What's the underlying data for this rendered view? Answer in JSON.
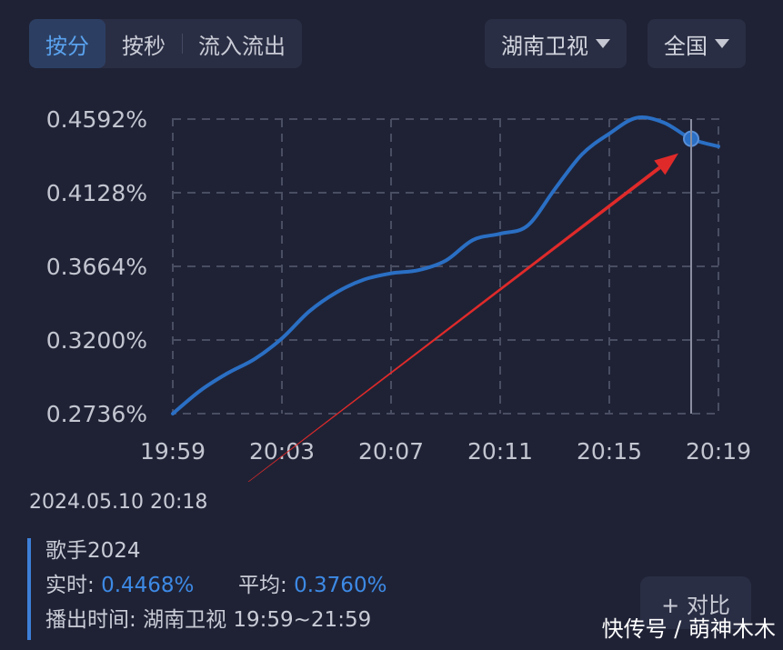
{
  "tabs": [
    {
      "label": "按分",
      "active": true
    },
    {
      "label": "按秒",
      "active": false
    },
    {
      "label": "流入流出",
      "active": false
    }
  ],
  "filters": {
    "channel": "湖南卫视",
    "region": "全国"
  },
  "info": {
    "datetime": "2024.05.10 20:18",
    "program": "歌手2024",
    "realtime_label": "实时:",
    "realtime_value": "0.4468%",
    "average_label": "平均:",
    "average_value": "0.3760%",
    "broadcast_label": "播出时间:",
    "broadcast_value": "湖南卫视 19:59~21:59"
  },
  "compare_label": "+ 对比",
  "watermark": "快传号 / 萌神木木",
  "colors": {
    "line": "#2a6fc4",
    "arrow": "#e02a2a",
    "accent": "#3d8ae6"
  },
  "chart_data": {
    "type": "line",
    "title": "",
    "xlabel": "",
    "ylabel": "",
    "x_ticks": [
      "19:59",
      "20:03",
      "20:07",
      "20:11",
      "20:15",
      "20:19"
    ],
    "y_ticks": [
      "0.2736%",
      "0.3200%",
      "0.3664%",
      "0.4128%",
      "0.4592%"
    ],
    "ylim": [
      0.2736,
      0.4592
    ],
    "xlim_minutes": [
      0,
      20
    ],
    "grid": true,
    "cursor_time": "20:18",
    "series": [
      {
        "x": [
          "19:59",
          "20:00",
          "20:01",
          "20:02",
          "20:03",
          "20:04",
          "20:05",
          "20:06",
          "20:07",
          "20:08",
          "20:09",
          "20:10",
          "20:11",
          "20:12",
          "20:13",
          "20:14",
          "20:15",
          "20:16",
          "20:17",
          "20:18",
          "20:19"
        ],
        "values": [
          0.2736,
          0.288,
          0.299,
          0.308,
          0.321,
          0.338,
          0.35,
          0.358,
          0.362,
          0.364,
          0.37,
          0.383,
          0.387,
          0.392,
          0.415,
          0.437,
          0.45,
          0.46,
          0.457,
          0.4468,
          0.442
        ]
      }
    ]
  }
}
